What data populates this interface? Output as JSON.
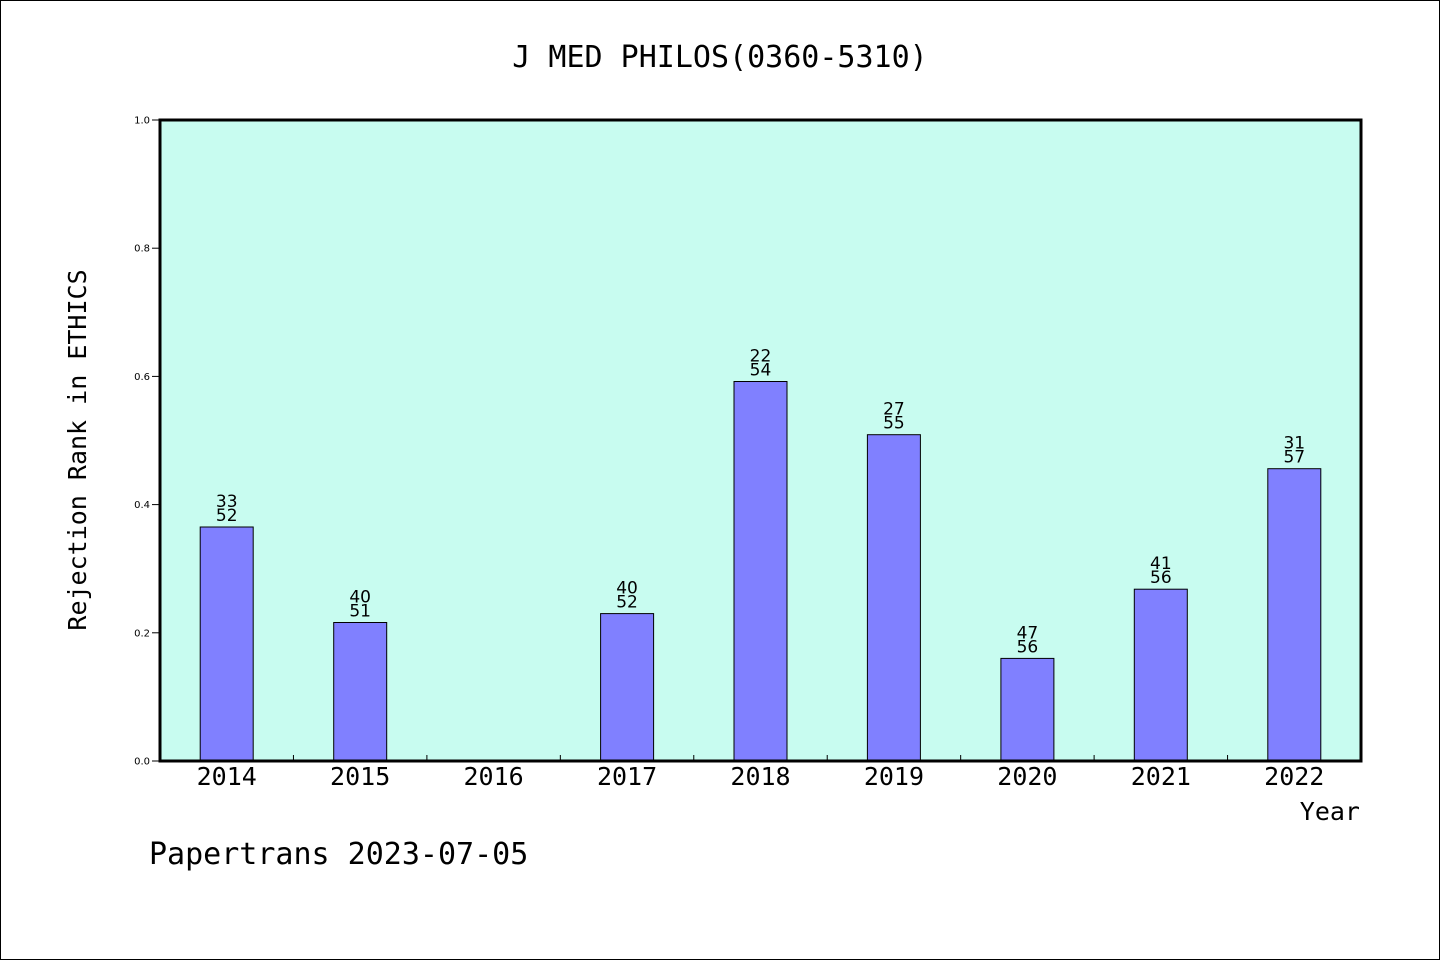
{
  "chart_data": {
    "type": "bar",
    "title": "J MED PHILOS(0360-5310)",
    "xlabel": "Year",
    "ylabel": "Rejection Rank in ETHICS",
    "categories": [
      "2014",
      "2015",
      "2016",
      "2017",
      "2018",
      "2019",
      "2020",
      "2021",
      "2022"
    ],
    "values": [
      0.365,
      0.216,
      null,
      0.23,
      0.592,
      0.509,
      0.16,
      0.268,
      0.456
    ],
    "bar_labels": [
      [
        "33",
        "52"
      ],
      [
        "40",
        "51"
      ],
      null,
      [
        "40",
        "52"
      ],
      [
        "22",
        "54"
      ],
      [
        "27",
        "55"
      ],
      [
        "47",
        "56"
      ],
      [
        "41",
        "56"
      ],
      [
        "31",
        "57"
      ]
    ],
    "ylim": [
      0,
      1
    ],
    "yticks": [
      "0.0",
      "0.2",
      "0.4",
      "0.6",
      "0.8",
      "1.0"
    ],
    "grid": false,
    "colors": {
      "plot_background": "#c8fcf0",
      "bar_fill": "#8080ff",
      "axis": "#000000"
    }
  },
  "footer": {
    "watermark": "Papertrans 2023-07-05"
  }
}
